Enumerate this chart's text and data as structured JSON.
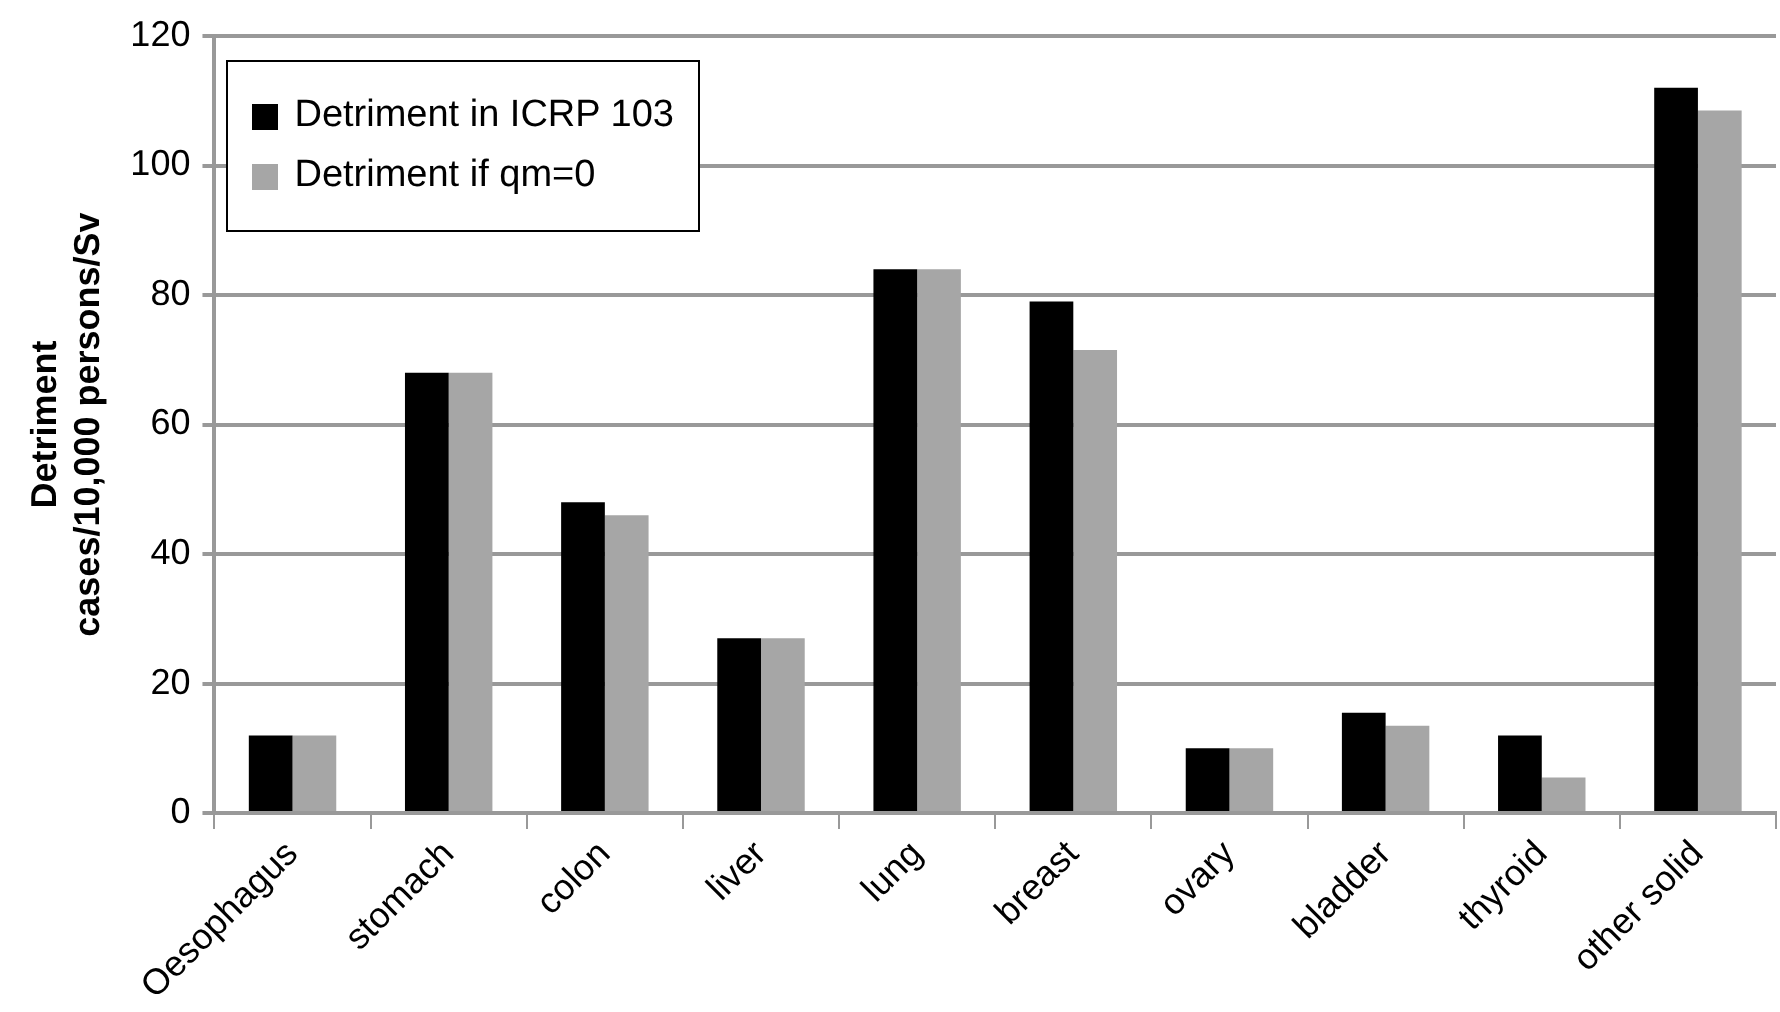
{
  "chart_data": {
    "type": "bar",
    "ylabel": "Detriment\ncases/10,000 persons/Sv",
    "categories": [
      "Oesophagus",
      "stomach",
      "colon",
      "liver",
      "lung",
      "breast",
      "ovary",
      "bladder",
      "thyroid",
      "other solid"
    ],
    "series": [
      {
        "name": "Detriment in ICRP 103",
        "color": "#000000",
        "values": [
          12,
          68,
          48,
          27,
          84,
          79,
          10,
          15.5,
          12,
          112
        ]
      },
      {
        "name": "Detriment if qm=0",
        "color": "#a6a6a6",
        "values": [
          12,
          68,
          46,
          27,
          84,
          71.5,
          10,
          13.5,
          5.5,
          108.5
        ]
      }
    ],
    "ylim": [
      0,
      120
    ],
    "yticks": [
      0,
      20,
      40,
      60,
      80,
      100,
      120
    ],
    "grid": "y",
    "legend": "top left"
  }
}
